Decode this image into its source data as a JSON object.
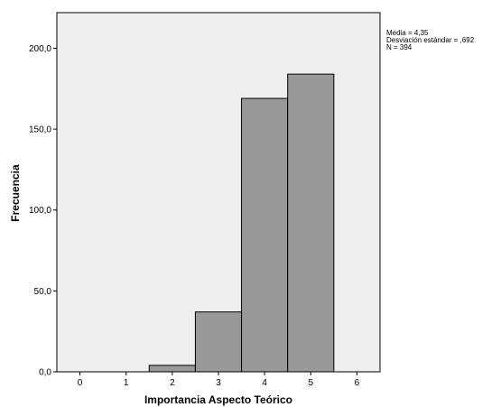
{
  "chart_data": {
    "type": "bar",
    "title": "",
    "xlabel": "Importancia Aspecto Teórico",
    "ylabel": "Frecuencia",
    "x_ticks": [
      "0",
      "1",
      "2",
      "3",
      "4",
      "5",
      "6"
    ],
    "y_ticks": [
      "0,0",
      "50,0",
      "100,0",
      "150,0",
      "200,0"
    ],
    "xlim": [
      -0.5,
      6.5
    ],
    "ylim": [
      0,
      222
    ],
    "categories": [
      "2",
      "3",
      "4",
      "5"
    ],
    "values": [
      4,
      37,
      169,
      184
    ],
    "stats": {
      "mean": "Media = 4,35",
      "std": "Desviación estándar = ,692",
      "n": "N = 394"
    },
    "grid": false,
    "legend": "none",
    "colors": {
      "plot_background": "#efefef",
      "bar_fill": "#999999",
      "bar_stroke": "#000000",
      "axis": "#000000"
    }
  }
}
